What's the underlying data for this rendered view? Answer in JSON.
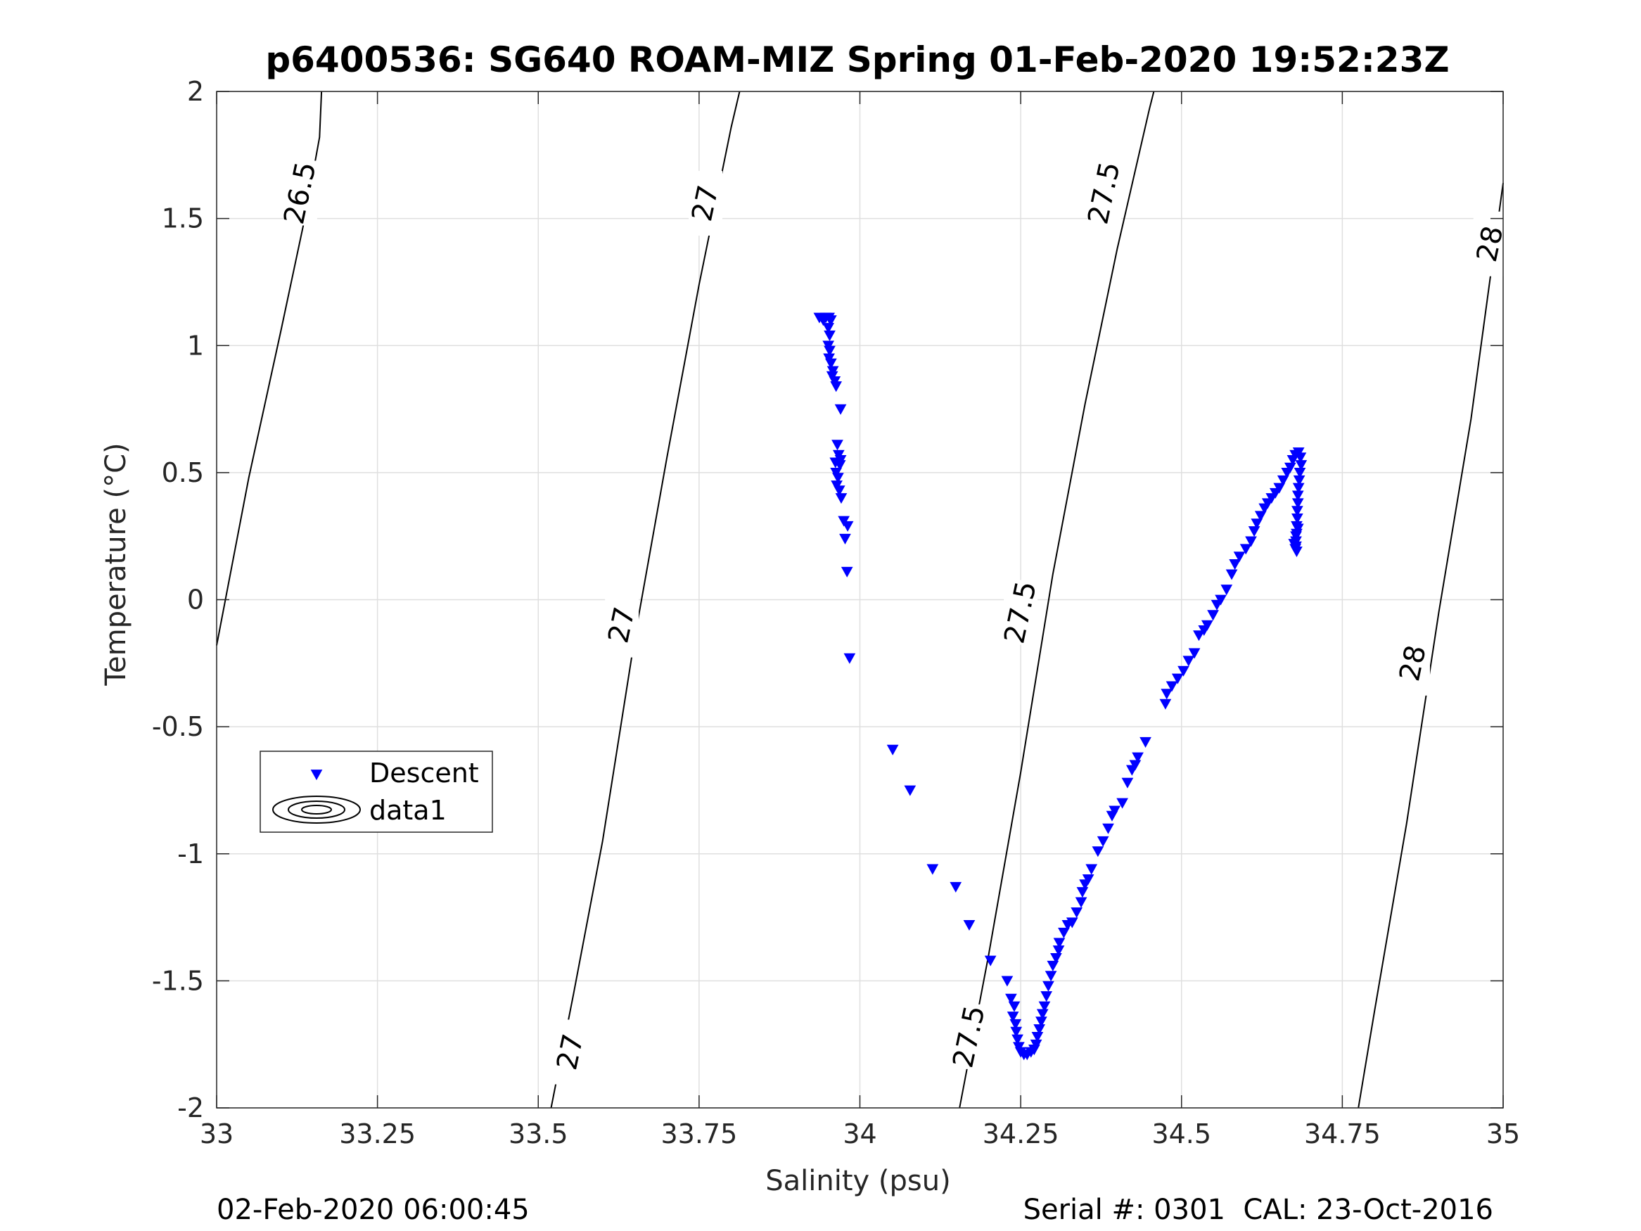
{
  "chart_data": {
    "type": "scatter",
    "title": "p6400536: SG640 ROAM-MIZ Spring 01-Feb-2020 19:52:23Z",
    "xlabel": "Salinity (psu)",
    "ylabel": "Temperature (°C)",
    "xlim": [
      33,
      35
    ],
    "ylim": [
      -2,
      2
    ],
    "xticks": [
      "33",
      "33.25",
      "33.5",
      "33.75",
      "34",
      "34.25",
      "34.5",
      "34.75",
      "35"
    ],
    "yticks": [
      "-2",
      "-1.5",
      "-1",
      "-0.5",
      "0",
      "0.5",
      "1",
      "1.5",
      "2"
    ],
    "grid": true,
    "legend_position": "left-middle",
    "legend": [
      "Descent",
      "data1"
    ],
    "marker_color": "#0000ff",
    "series": [
      {
        "name": "Descent",
        "marker": "triangle-down",
        "points": [
          [
            33.937,
            1.11
          ],
          [
            33.943,
            1.1
          ],
          [
            33.947,
            1.11
          ],
          [
            33.952,
            1.11
          ],
          [
            33.955,
            1.1
          ],
          [
            33.951,
            1.07
          ],
          [
            33.953,
            1.04
          ],
          [
            33.951,
            1.0
          ],
          [
            33.953,
            0.98
          ],
          [
            33.952,
            0.95
          ],
          [
            33.955,
            0.93
          ],
          [
            33.958,
            0.9
          ],
          [
            33.957,
            0.88
          ],
          [
            33.961,
            0.86
          ],
          [
            33.963,
            0.84
          ],
          [
            33.97,
            0.75
          ],
          [
            33.965,
            0.61
          ],
          [
            33.967,
            0.57
          ],
          [
            33.97,
            0.55
          ],
          [
            33.962,
            0.54
          ],
          [
            33.969,
            0.53
          ],
          [
            33.963,
            0.5
          ],
          [
            33.966,
            0.48
          ],
          [
            33.964,
            0.45
          ],
          [
            33.968,
            0.43
          ],
          [
            33.971,
            0.4
          ],
          [
            33.975,
            0.31
          ],
          [
            33.981,
            0.29
          ],
          [
            33.977,
            0.24
          ],
          [
            33.98,
            0.11
          ],
          [
            33.984,
            -0.23
          ],
          [
            34.051,
            -0.59
          ],
          [
            34.078,
            -0.75
          ],
          [
            34.113,
            -1.06
          ],
          [
            34.149,
            -1.13
          ],
          [
            34.17,
            -1.28
          ],
          [
            34.203,
            -1.42
          ],
          [
            34.229,
            -1.5
          ],
          [
            34.235,
            -1.57
          ],
          [
            34.24,
            -1.6
          ],
          [
            34.238,
            -1.64
          ],
          [
            34.242,
            -1.67
          ],
          [
            34.243,
            -1.7
          ],
          [
            34.245,
            -1.73
          ],
          [
            34.247,
            -1.76
          ],
          [
            34.25,
            -1.78
          ],
          [
            34.255,
            -1.79
          ],
          [
            34.26,
            -1.79
          ],
          [
            34.266,
            -1.78
          ],
          [
            34.271,
            -1.77
          ],
          [
            34.274,
            -1.75
          ],
          [
            34.276,
            -1.72
          ],
          [
            34.279,
            -1.69
          ],
          [
            34.282,
            -1.66
          ],
          [
            34.284,
            -1.63
          ],
          [
            34.287,
            -1.6
          ],
          [
            34.29,
            -1.56
          ],
          [
            34.293,
            -1.52
          ],
          [
            34.297,
            -1.48
          ],
          [
            34.3,
            -1.44
          ],
          [
            34.305,
            -1.41
          ],
          [
            34.309,
            -1.38
          ],
          [
            34.31,
            -1.35
          ],
          [
            34.317,
            -1.31
          ],
          [
            34.323,
            -1.28
          ],
          [
            34.33,
            -1.27
          ],
          [
            34.337,
            -1.23
          ],
          [
            34.344,
            -1.19
          ],
          [
            34.346,
            -1.15
          ],
          [
            34.35,
            -1.12
          ],
          [
            34.355,
            -1.1
          ],
          [
            34.36,
            -1.06
          ],
          [
            34.37,
            -0.99
          ],
          [
            34.378,
            -0.95
          ],
          [
            34.386,
            -0.9
          ],
          [
            34.392,
            -0.85
          ],
          [
            34.396,
            -0.83
          ],
          [
            34.408,
            -0.8
          ],
          [
            34.416,
            -0.72
          ],
          [
            34.423,
            -0.67
          ],
          [
            34.428,
            -0.65
          ],
          [
            34.432,
            -0.62
          ],
          [
            34.444,
            -0.56
          ],
          [
            34.475,
            -0.41
          ],
          [
            34.477,
            -0.37
          ],
          [
            34.485,
            -0.34
          ],
          [
            34.494,
            -0.31
          ],
          [
            34.503,
            -0.28
          ],
          [
            34.511,
            -0.24
          ],
          [
            34.52,
            -0.21
          ],
          [
            34.527,
            -0.14
          ],
          [
            34.535,
            -0.12
          ],
          [
            34.54,
            -0.1
          ],
          [
            34.549,
            -0.06
          ],
          [
            34.555,
            -0.02
          ],
          [
            34.561,
            0.0
          ],
          [
            34.57,
            0.04
          ],
          [
            34.578,
            0.1
          ],
          [
            34.583,
            0.14
          ],
          [
            34.59,
            0.17
          ],
          [
            34.6,
            0.2
          ],
          [
            34.608,
            0.23
          ],
          [
            34.613,
            0.27
          ],
          [
            34.617,
            0.3
          ],
          [
            34.623,
            0.33
          ],
          [
            34.629,
            0.36
          ],
          [
            34.634,
            0.38
          ],
          [
            34.64,
            0.4
          ],
          [
            34.646,
            0.42
          ],
          [
            34.652,
            0.44
          ],
          [
            34.658,
            0.47
          ],
          [
            34.664,
            0.5
          ],
          [
            34.669,
            0.52
          ],
          [
            34.673,
            0.55
          ],
          [
            34.677,
            0.57
          ],
          [
            34.682,
            0.58
          ],
          [
            34.685,
            0.56
          ],
          [
            34.686,
            0.53
          ],
          [
            34.684,
            0.5
          ],
          [
            34.683,
            0.47
          ],
          [
            34.682,
            0.44
          ],
          [
            34.681,
            0.41
          ],
          [
            34.681,
            0.38
          ],
          [
            34.68,
            0.35
          ],
          [
            34.68,
            0.32
          ],
          [
            34.679,
            0.29
          ],
          [
            34.679,
            0.26
          ],
          [
            34.678,
            0.23
          ],
          [
            34.678,
            0.21
          ],
          [
            34.679,
            0.19
          ],
          [
            34.677,
            0.2
          ],
          [
            34.675,
            0.22
          ],
          [
            34.678,
            0.25
          ],
          [
            34.681,
            0.28
          ]
        ]
      },
      {
        "name": "data1",
        "contour_levels": [
          {
            "label": "26.5",
            "points": [
              [
                33.0,
                -0.18
              ],
              [
                33.05,
                0.48
              ],
              [
                33.1,
                1.06
              ],
              [
                33.137,
                1.5
              ],
              [
                33.16,
                1.82
              ],
              [
                33.163,
                2.0
              ]
            ]
          },
          {
            "label": "27",
            "points": [
              [
                33.52,
                -2.0
              ],
              [
                33.555,
                -1.55
              ],
              [
                33.6,
                -0.95
              ],
              [
                33.65,
                -0.15
              ],
              [
                33.7,
                0.56
              ],
              [
                33.75,
                1.24
              ],
              [
                33.8,
                1.86
              ],
              [
                33.813,
                2.0
              ]
            ]
          },
          {
            "label": "27.5",
            "points": [
              [
                34.155,
                -2.0
              ],
              [
                34.2,
                -1.4
              ],
              [
                34.25,
                -0.68
              ],
              [
                34.3,
                0.1
              ],
              [
                34.35,
                0.77
              ],
              [
                34.4,
                1.38
              ],
              [
                34.45,
                1.93
              ],
              [
                34.457,
                2.0
              ]
            ]
          },
          {
            "label": "28",
            "points": [
              [
                34.775,
                -2.0
              ],
              [
                34.8,
                -1.62
              ],
              [
                34.85,
                -0.88
              ],
              [
                34.9,
                -0.05
              ],
              [
                34.95,
                0.71
              ],
              [
                35.0,
                1.64
              ]
            ]
          }
        ],
        "contour_label_positions": [
          {
            "text": "26.5",
            "x": 33.13,
            "y": 1.6
          },
          {
            "text": "27",
            "x": 33.76,
            "y": 1.56
          },
          {
            "text": "27",
            "x": 33.63,
            "y": -0.1
          },
          {
            "text": "27",
            "x": 33.55,
            "y": -1.78
          },
          {
            "text": "27.5",
            "x": 34.38,
            "y": 1.6
          },
          {
            "text": "27.5",
            "x": 34.25,
            "y": -0.05
          },
          {
            "text": "27.5",
            "x": 34.17,
            "y": -1.72
          },
          {
            "text": "28",
            "x": 34.98,
            "y": 1.4
          },
          {
            "text": "28",
            "x": 34.86,
            "y": -0.25
          }
        ]
      }
    ]
  },
  "footer": {
    "left": "02-Feb-2020 06:00:45",
    "right": "Serial #: 0301  CAL: 23-Oct-2016"
  }
}
